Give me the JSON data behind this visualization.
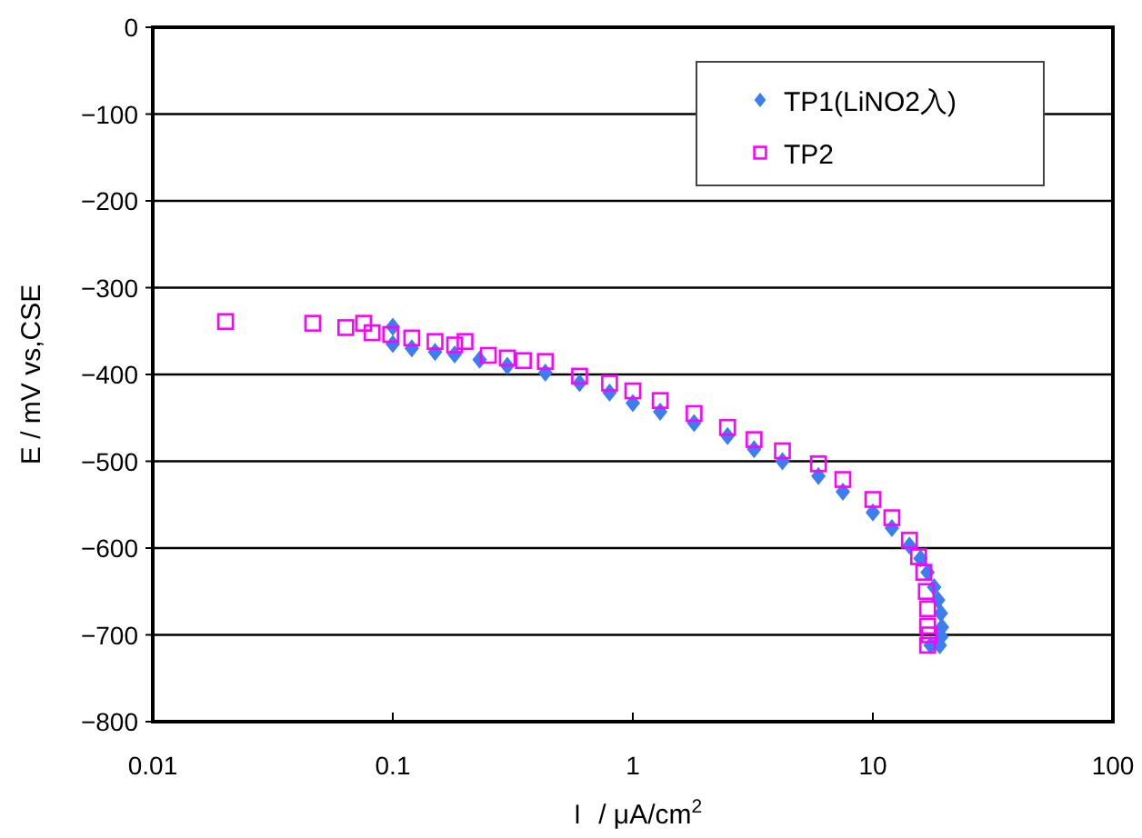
{
  "chart_data": {
    "type": "scatter",
    "xlabel": "Ｉ / μA/cm$^{2}$",
    "ylabel": "E / mV  vs,CSE",
    "log": "x",
    "grid": "y",
    "legend": "top right",
    "xlim": [
      0.01,
      100
    ],
    "xticks": [
      0.01,
      0.1,
      1,
      10,
      100
    ],
    "ylim": [
      -800,
      0
    ],
    "yticks": [
      -800,
      -700,
      -600,
      -500,
      -400,
      -300,
      -200,
      -100,
      0
    ],
    "series": [
      {
        "name": "TP1(LiNO2入)",
        "color": "#3c7ef0",
        "marker": "diamond",
        "x": [
          0.1,
          0.1,
          0.12,
          0.15,
          0.181,
          0.23,
          0.3,
          0.432,
          0.6,
          0.8,
          1.0,
          1.3,
          1.8,
          2.48,
          3.2,
          4.2,
          5.93,
          7.5,
          10,
          12,
          14.2,
          15.8,
          16.9,
          18,
          18.7,
          19.2,
          19.4,
          19.3,
          19.0,
          18.2,
          17.4
        ],
        "values": [
          -345,
          -365,
          -370,
          -374,
          -377,
          -383,
          -390,
          -398,
          -410,
          -421,
          -433,
          -443,
          -456,
          -471,
          -486,
          -500,
          -517,
          -535,
          -559,
          -577,
          -597,
          -612,
          -628,
          -645,
          -660,
          -675,
          -691,
          -702,
          -712,
          null,
          -712
        ]
      },
      {
        "name": "TP2",
        "color": "#ff00ff",
        "marker": "square",
        "x": [
          0.0201,
          0.0464,
          0.0637,
          0.0756,
          0.082,
          0.098,
          0.12,
          0.15,
          0.181,
          0.2,
          0.25,
          0.3,
          0.35,
          0.432,
          0.6,
          0.8,
          1.0,
          1.3,
          1.8,
          2.48,
          3.2,
          4.2,
          5.93,
          7.5,
          10,
          12,
          14.2,
          15.5,
          16.3,
          16.7,
          16.9,
          16.9,
          16.9,
          17.2
        ],
        "values": [
          -339,
          -341,
          -346,
          -341,
          -352,
          -354,
          -358,
          -362,
          -366,
          -362,
          -378,
          -381,
          -384,
          -385,
          -402,
          -410,
          -419,
          -430,
          -445,
          -461,
          -475,
          -488,
          -503,
          -521,
          -544,
          -565,
          -591,
          -610,
          -628,
          -650,
          -670,
          -690,
          -712,
          -700
        ]
      }
    ]
  }
}
